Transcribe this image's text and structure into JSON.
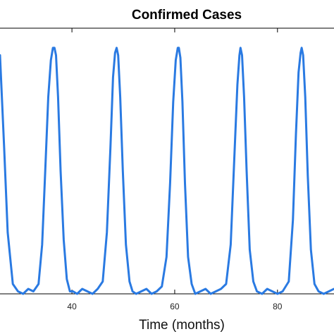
{
  "chart_data": {
    "type": "line",
    "title": "Confirmed Cases",
    "xlabel": "Time (months)",
    "ylabel": "",
    "xlim": [
      26,
      91
    ],
    "ylim": [
      0,
      1.08
    ],
    "x_ticks": [
      40,
      60,
      80
    ],
    "y_ticks": [],
    "grid": false,
    "color": "#2a7ae2",
    "series": [
      {
        "x": [
          26,
          26.8,
          27.5,
          28.5,
          29.5,
          30.5,
          31.5,
          32.5,
          33.5,
          34.2,
          34.8,
          35.4,
          35.9,
          36.3,
          36.6,
          36.9,
          37.3,
          37.8,
          38.4,
          39.0,
          39.6,
          40.2,
          41.0,
          42.0,
          43.0,
          44.0,
          45.0,
          46.0,
          46.8,
          47.5,
          48.0,
          48.4,
          48.7,
          49.0,
          49.4,
          49.9,
          50.5,
          51.2,
          51.8,
          52.5,
          53.5,
          54.5,
          55.5,
          56.5,
          57.5,
          58.4,
          59.1,
          59.7,
          60.2,
          60.6,
          60.8,
          61.1,
          61.5,
          62.0,
          62.6,
          63.3,
          64.0,
          65.0,
          66.0,
          67.0,
          68.0,
          69.0,
          70.0,
          70.9,
          71.6,
          72.2,
          72.6,
          72.8,
          73.1,
          73.5,
          74.0,
          74.6,
          75.3,
          76.0,
          77.0,
          78.0,
          79.0,
          80.0,
          81.0,
          82.2,
          83.0,
          83.6,
          84.1,
          84.5,
          84.7,
          85.0,
          85.4,
          85.9,
          86.5,
          87.2,
          88.0,
          89.0,
          90.0,
          91.0
        ],
        "values": [
          0.97,
          0.6,
          0.25,
          0.04,
          0.01,
          0.0,
          0.02,
          0.01,
          0.04,
          0.2,
          0.5,
          0.8,
          0.95,
          1.0,
          1.0,
          0.97,
          0.8,
          0.5,
          0.22,
          0.06,
          0.01,
          0.01,
          0.0,
          0.02,
          0.01,
          0.0,
          0.02,
          0.05,
          0.25,
          0.6,
          0.88,
          0.98,
          1.0,
          0.97,
          0.8,
          0.5,
          0.2,
          0.05,
          0.01,
          0.0,
          0.01,
          0.02,
          0.0,
          0.01,
          0.03,
          0.15,
          0.45,
          0.78,
          0.95,
          1.0,
          1.0,
          0.96,
          0.78,
          0.45,
          0.15,
          0.04,
          0.0,
          0.01,
          0.02,
          0.0,
          0.01,
          0.02,
          0.04,
          0.2,
          0.55,
          0.85,
          0.97,
          1.0,
          0.97,
          0.8,
          0.5,
          0.18,
          0.05,
          0.01,
          0.0,
          0.02,
          0.01,
          0.0,
          0.01,
          0.05,
          0.3,
          0.65,
          0.9,
          0.98,
          1.0,
          0.97,
          0.8,
          0.48,
          0.18,
          0.04,
          0.01,
          0.0,
          0.01,
          0.02
        ]
      }
    ]
  }
}
